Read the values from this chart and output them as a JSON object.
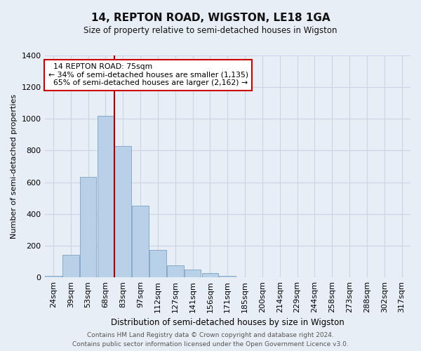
{
  "title": "14, REPTON ROAD, WIGSTON, LE18 1GA",
  "subtitle": "Size of property relative to semi-detached houses in Wigston",
  "xlabel": "Distribution of semi-detached houses by size in Wigston",
  "ylabel": "Number of semi-detached properties",
  "footer_line1": "Contains HM Land Registry data © Crown copyright and database right 2024.",
  "footer_line2": "Contains public sector information licensed under the Open Government Licence v3.0.",
  "categories": [
    "24sqm",
    "39sqm",
    "53sqm",
    "68sqm",
    "83sqm",
    "97sqm",
    "112sqm",
    "127sqm",
    "141sqm",
    "156sqm",
    "171sqm",
    "185sqm",
    "200sqm",
    "214sqm",
    "229sqm",
    "244sqm",
    "258sqm",
    "273sqm",
    "288sqm",
    "302sqm",
    "317sqm"
  ],
  "values": [
    10,
    140,
    635,
    1020,
    830,
    450,
    175,
    75,
    50,
    25,
    10,
    0,
    0,
    0,
    0,
    0,
    0,
    0,
    0,
    0,
    0
  ],
  "bar_color": "#b8d0e8",
  "bar_edge_color": "#88aac8",
  "ylim": [
    0,
    1400
  ],
  "yticks": [
    0,
    200,
    400,
    600,
    800,
    1000,
    1200,
    1400
  ],
  "property_label": "14 REPTON ROAD: 75sqm",
  "pct_smaller": 34,
  "num_smaller": 1135,
  "pct_larger": 65,
  "num_larger": 2162,
  "red_line_x": 3.5,
  "annotation_box_color": "#ffffff",
  "annotation_box_edge": "#cc0000",
  "red_line_color": "#aa0000",
  "grid_color": "#ccd5e5",
  "bg_color": "#e8eef5",
  "title_fontsize": 11,
  "subtitle_fontsize": 8.5,
  "xlabel_fontsize": 8.5,
  "ylabel_fontsize": 8,
  "tick_fontsize": 8,
  "annot_fontsize": 7.8,
  "footer_fontsize": 6.5
}
